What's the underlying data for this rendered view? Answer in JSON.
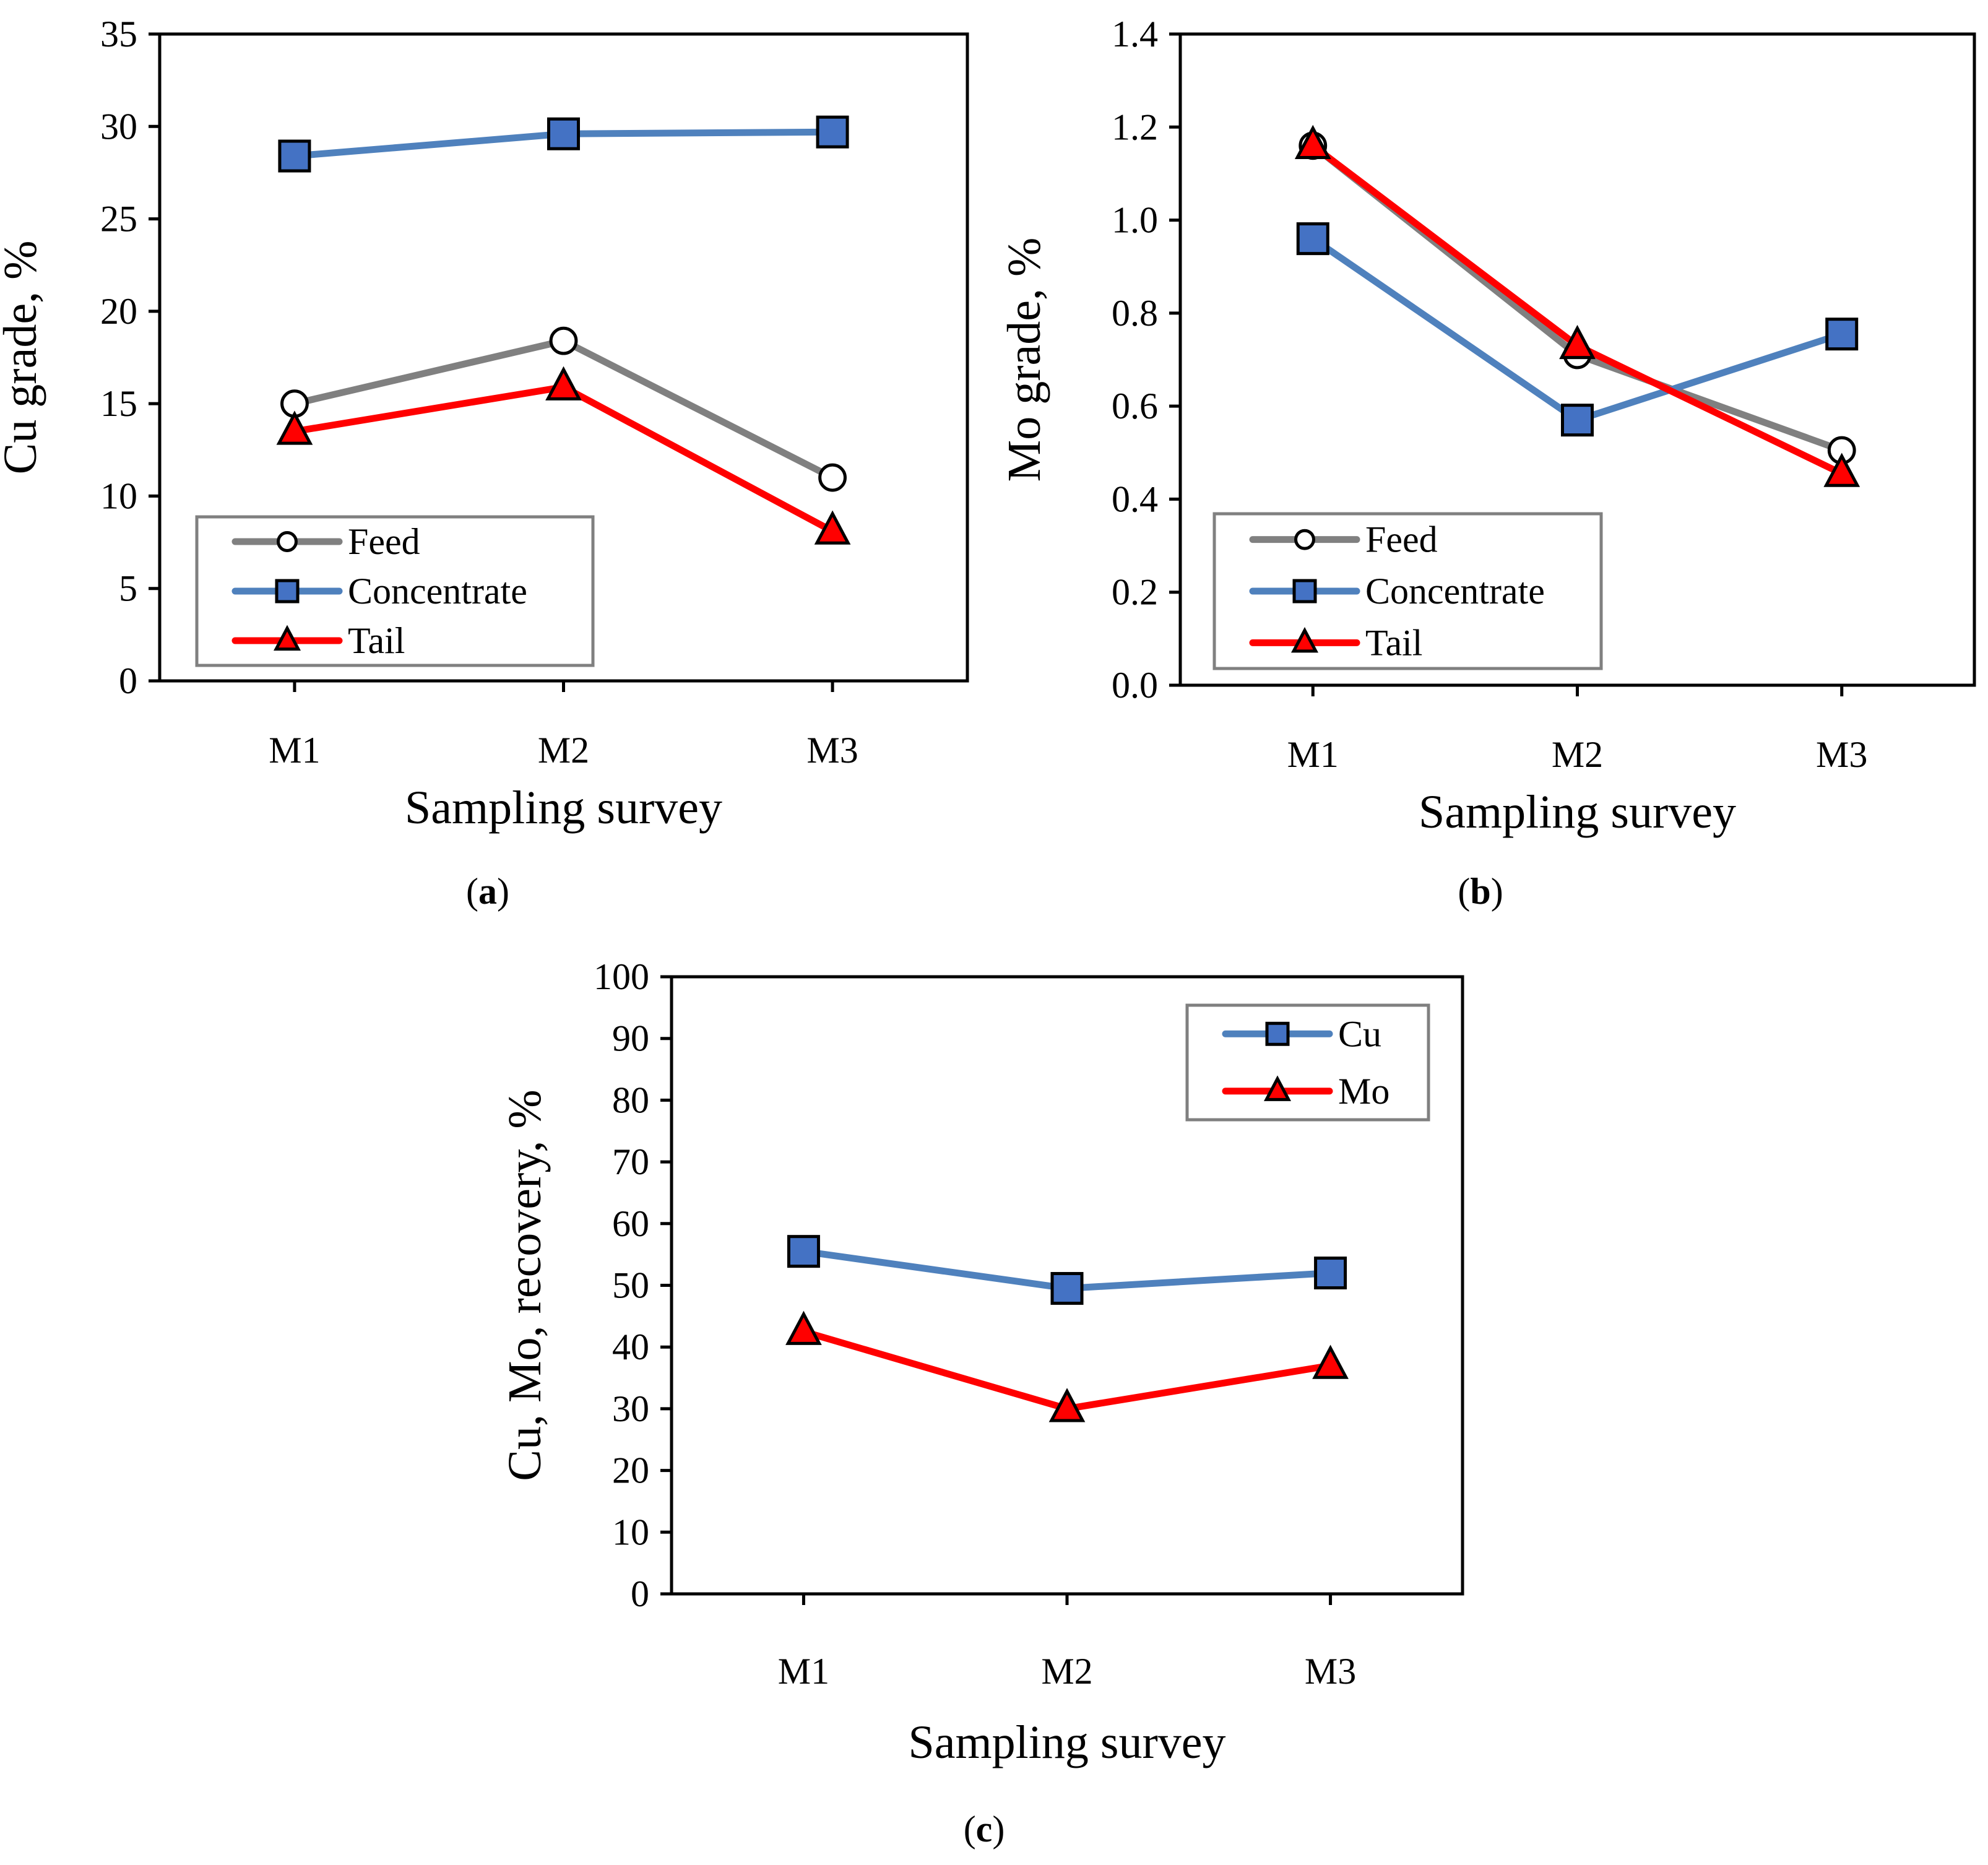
{
  "colors": {
    "feed": "#808080",
    "concentrate": "#4f81bd",
    "tail": "#ff0000",
    "marker_blue": "#4472c4",
    "marker_red": "#ff0000",
    "legend_border": "#808080"
  },
  "chart_data": [
    {
      "id": "a",
      "type": "line",
      "caption_open": "(",
      "caption_letter": "a",
      "caption_close": ")",
      "xlabel": "Sampling survey",
      "ylabel": "Cu grade, %",
      "categories": [
        "M1",
        "M2",
        "M3"
      ],
      "ylim": [
        0,
        35
      ],
      "yticks": [
        0,
        5,
        10,
        15,
        20,
        25,
        30,
        35
      ],
      "ytick_labels": [
        "0",
        "5",
        "10",
        "15",
        "20",
        "25",
        "30",
        "35"
      ],
      "legend_position": "bottom-left",
      "series": [
        {
          "name": "Feed",
          "key": "feed",
          "marker": "circle",
          "values": [
            15.0,
            18.4,
            11.0
          ]
        },
        {
          "name": "Concentrate",
          "key": "concentrate",
          "marker": "square",
          "values": [
            28.4,
            29.6,
            29.7
          ]
        },
        {
          "name": "Tail",
          "key": "tail",
          "marker": "triangle",
          "values": [
            13.5,
            15.9,
            8.1
          ]
        }
      ]
    },
    {
      "id": "b",
      "type": "line",
      "caption_open": "(",
      "caption_letter": "b",
      "caption_close": ")",
      "xlabel": "Sampling survey",
      "ylabel": "Mo grade, %",
      "categories": [
        "M1",
        "M2",
        "M3"
      ],
      "ylim": [
        0,
        1.4
      ],
      "yticks": [
        0,
        0.2,
        0.4,
        0.6,
        0.8,
        1.0,
        1.2,
        1.4
      ],
      "ytick_labels": [
        "0.0",
        "0.2",
        "0.4",
        "0.6",
        "0.8",
        "1.0",
        "1.2",
        "1.4"
      ],
      "legend_position": "bottom-left",
      "series": [
        {
          "name": "Feed",
          "key": "feed",
          "marker": "circle",
          "values": [
            1.16,
            0.71,
            0.505
          ]
        },
        {
          "name": "Concentrate",
          "key": "concentrate",
          "marker": "square",
          "values": [
            0.96,
            0.57,
            0.755
          ]
        },
        {
          "name": "Tail",
          "key": "tail",
          "marker": "triangle",
          "values": [
            1.16,
            0.73,
            0.455
          ]
        }
      ]
    },
    {
      "id": "c",
      "type": "line",
      "caption_open": "(",
      "caption_letter": "c",
      "caption_close": ")",
      "xlabel": "Sampling survey",
      "ylabel": "Cu, Mo, recovery, %",
      "categories": [
        "M1",
        "M2",
        "M3"
      ],
      "ylim": [
        0,
        100
      ],
      "yticks": [
        0,
        10,
        20,
        30,
        40,
        50,
        60,
        70,
        80,
        90,
        100
      ],
      "ytick_labels": [
        "0",
        "10",
        "20",
        "30",
        "40",
        "50",
        "60",
        "70",
        "80",
        "90",
        "100"
      ],
      "legend_position": "top-right",
      "series": [
        {
          "name": "Cu",
          "key": "concentrate",
          "marker": "square",
          "values": [
            55.5,
            49.5,
            52.0
          ]
        },
        {
          "name": "Mo",
          "key": "tail",
          "marker": "triangle",
          "values": [
            42.5,
            30.0,
            37.0
          ]
        }
      ]
    }
  ]
}
